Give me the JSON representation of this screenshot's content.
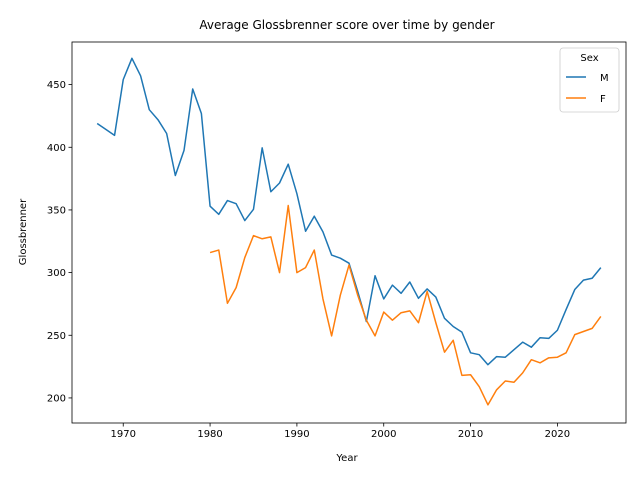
{
  "chart_data": {
    "type": "line",
    "title": "Average Glossbrenner score over time by gender",
    "xlabel": "Year",
    "ylabel": "Glossbrenner",
    "xlim": [
      1964.1,
      2027.9
    ],
    "ylim": [
      180,
      484
    ],
    "xticks": [
      1970,
      1980,
      1990,
      2000,
      2010,
      2020
    ],
    "yticks": [
      200,
      250,
      300,
      350,
      400,
      450
    ],
    "grid": false,
    "legend": {
      "title": "Sex",
      "placement": "top-right"
    },
    "series": [
      {
        "name": "M",
        "color": "#1f77b4",
        "x": [
          1967,
          1969,
          1970,
          1971,
          1972,
          1973,
          1974,
          1975,
          1976,
          1977,
          1978,
          1979,
          1980,
          1981,
          1982,
          1983,
          1984,
          1985,
          1986,
          1987,
          1988,
          1989,
          1990,
          1991,
          1992,
          1993,
          1994,
          1995,
          1996,
          1997,
          1998,
          1999,
          2000,
          2001,
          2002,
          2003,
          2004,
          2005,
          2006,
          2007,
          2008,
          2009,
          2010,
          2011,
          2012,
          2013,
          2014,
          2015,
          2016,
          2017,
          2018,
          2019,
          2020,
          2021,
          2022,
          2023,
          2024,
          2025
        ],
        "y": [
          419,
          409.5,
          454,
          471,
          457,
          430,
          422,
          411,
          377.5,
          397.5,
          446.5,
          427,
          353,
          346.5,
          357.5,
          355,
          341.5,
          350.5,
          399.5,
          364.5,
          371.5,
          386.5,
          363,
          333,
          345,
          332.5,
          314,
          311.5,
          307.5,
          285,
          261,
          297.5,
          279,
          290,
          283.5,
          292.5,
          279.5,
          287,
          280.5,
          263.5,
          257,
          252.5,
          236,
          234.5,
          226.5,
          233,
          232.5,
          238.5,
          244.5,
          240.5,
          248,
          247.5,
          254,
          270.5,
          286.5,
          294,
          295.5,
          304
        ]
      },
      {
        "name": "F",
        "color": "#ff7f0e",
        "x": [
          1980,
          1981,
          1982,
          1983,
          1984,
          1985,
          1986,
          1987,
          1988,
          1989,
          1990,
          1991,
          1992,
          1993,
          1994,
          1995,
          1996,
          1997,
          1998,
          1999,
          2000,
          2001,
          2002,
          2003,
          2004,
          2005,
          2006,
          2007,
          2008,
          2009,
          2010,
          2011,
          2012,
          2013,
          2014,
          2015,
          2016,
          2017,
          2018,
          2019,
          2020,
          2021,
          2022,
          2023,
          2024,
          2025
        ],
        "y": [
          316,
          318,
          275.5,
          288,
          312,
          329.5,
          327,
          328.5,
          300,
          353.5,
          300,
          304,
          318,
          279,
          249.5,
          282,
          306,
          282,
          262,
          249.5,
          268.5,
          262,
          268,
          269.5,
          260,
          285,
          260,
          236.5,
          246,
          218,
          218.5,
          209,
          194.5,
          206.5,
          213.5,
          212.5,
          220,
          230.5,
          228,
          232,
          232.5,
          236,
          250.5,
          253,
          255.5,
          265
        ]
      }
    ]
  }
}
